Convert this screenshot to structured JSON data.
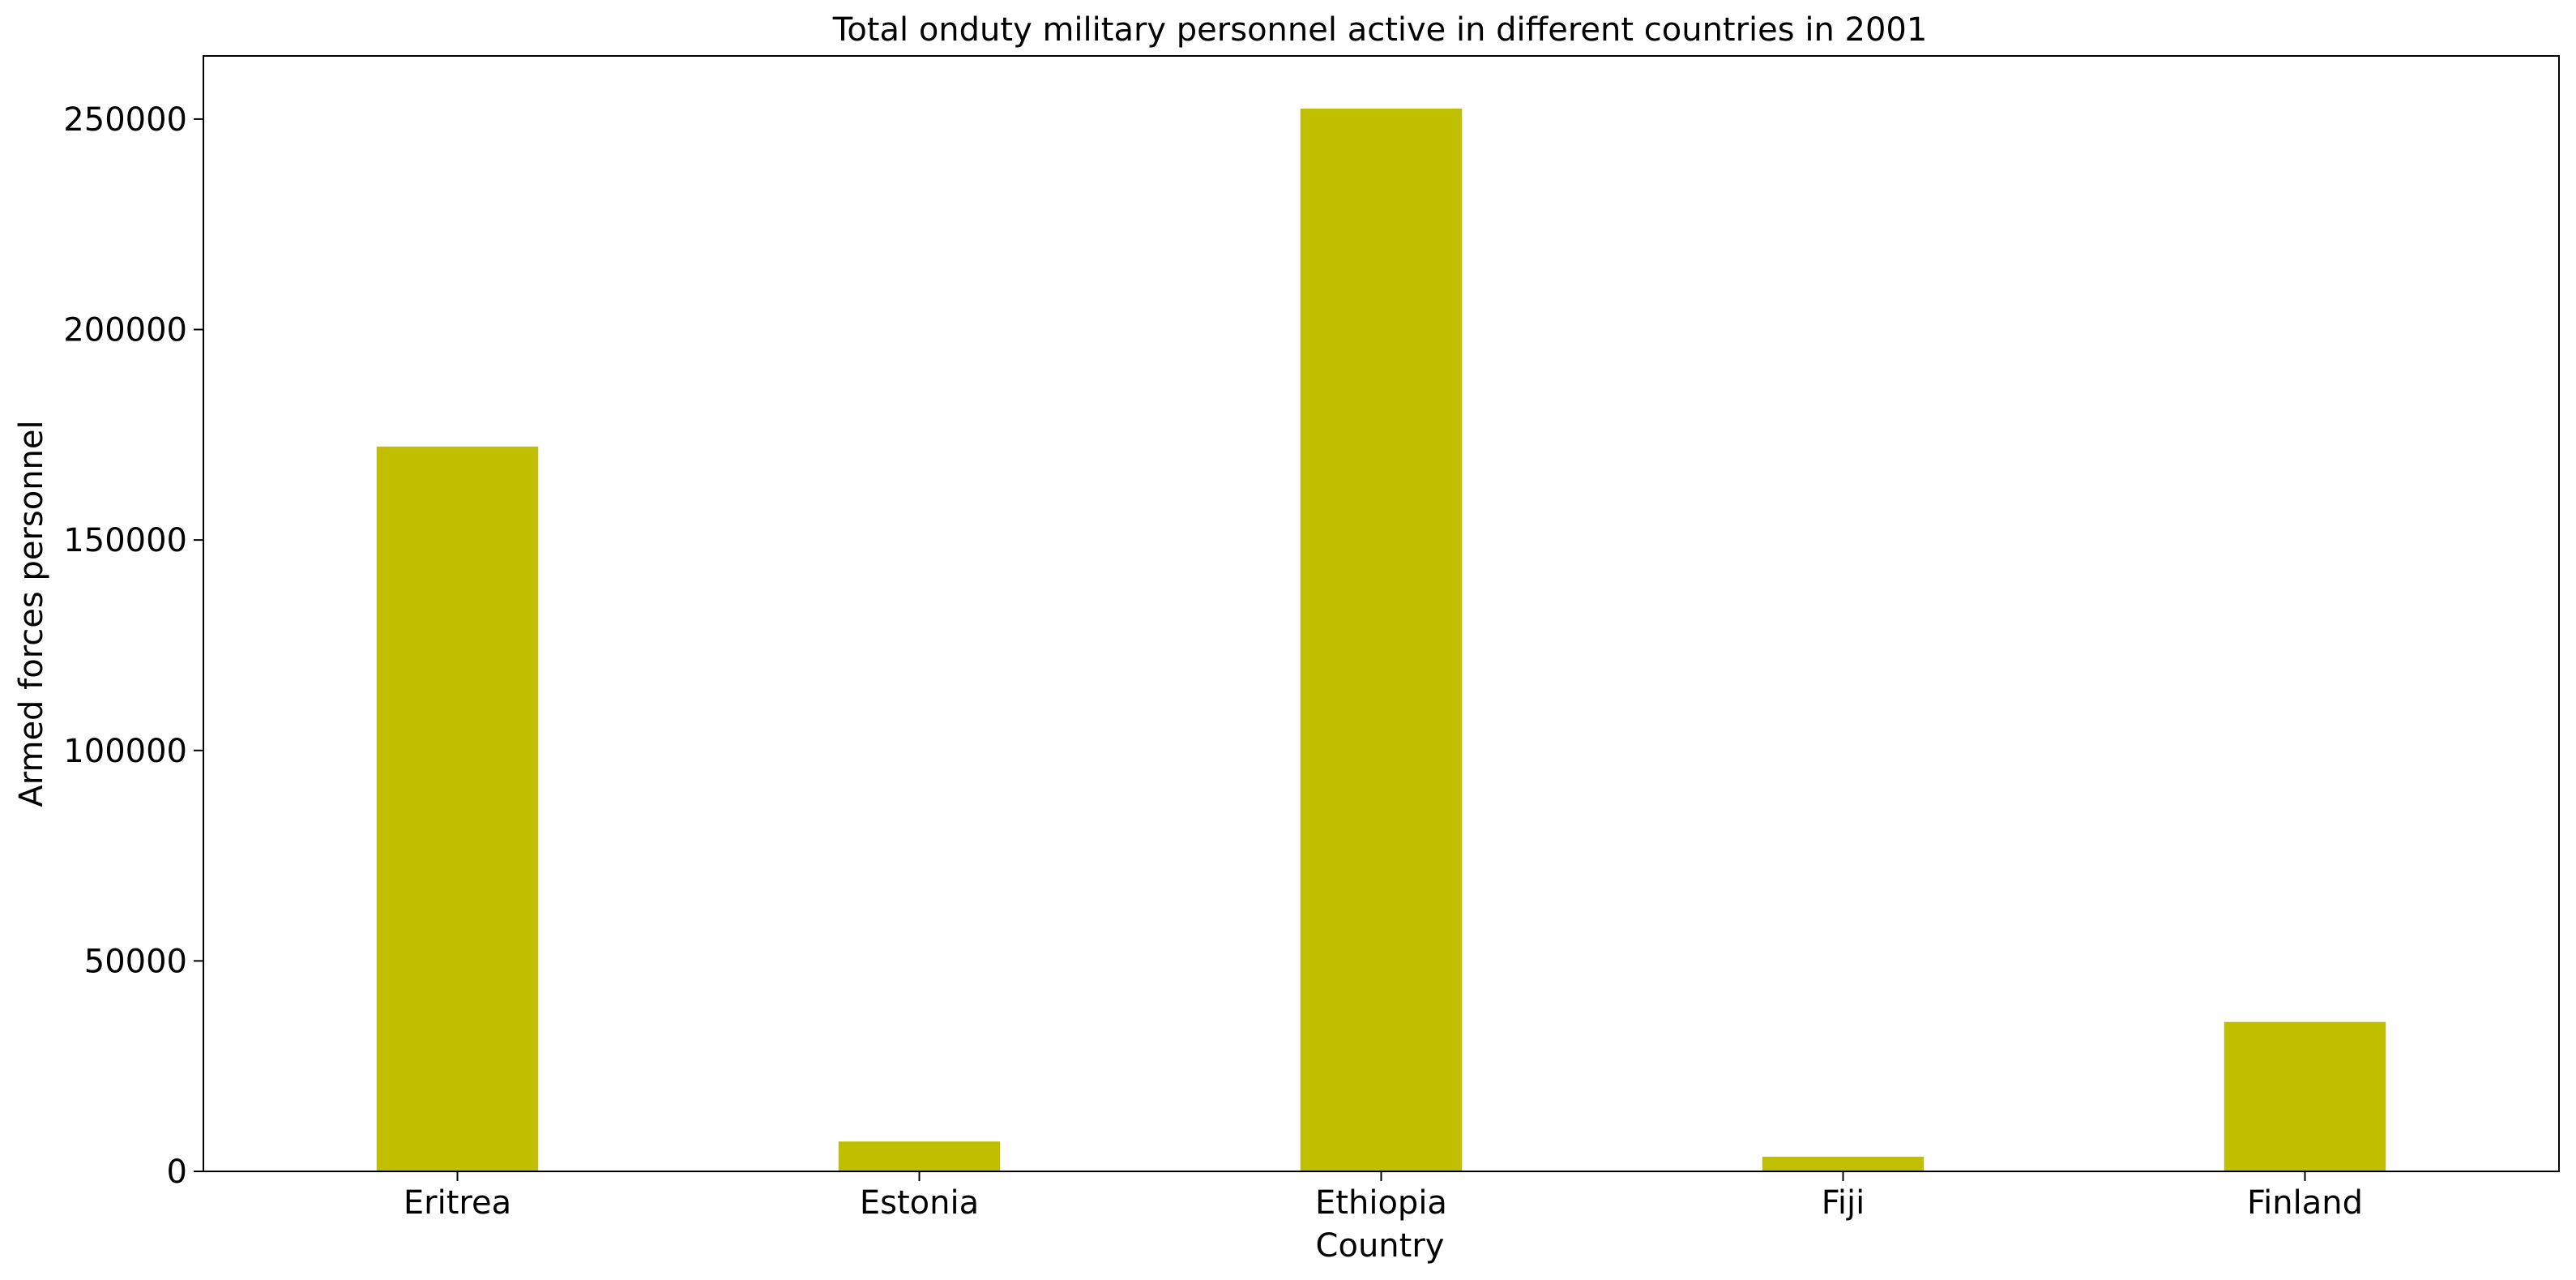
{
  "chart_data": {
    "type": "bar",
    "title": "Total onduty military personnel active in different countries in 2001",
    "xlabel": "Country",
    "ylabel": "Armed forces personnel",
    "categories": [
      "Eritrea",
      "Estonia",
      "Ethiopia",
      "Fiji",
      "Finland"
    ],
    "values": [
      172200,
      7100,
      252500,
      3500,
      35500
    ],
    "ylim": [
      0,
      265000
    ],
    "yticks": [
      0,
      50000,
      100000,
      150000,
      200000,
      250000
    ],
    "ytick_labels": [
      "0",
      "50000",
      "100000",
      "150000",
      "200000",
      "250000"
    ],
    "bar_color": "#bfbf00",
    "grid": false,
    "legend": "none"
  }
}
